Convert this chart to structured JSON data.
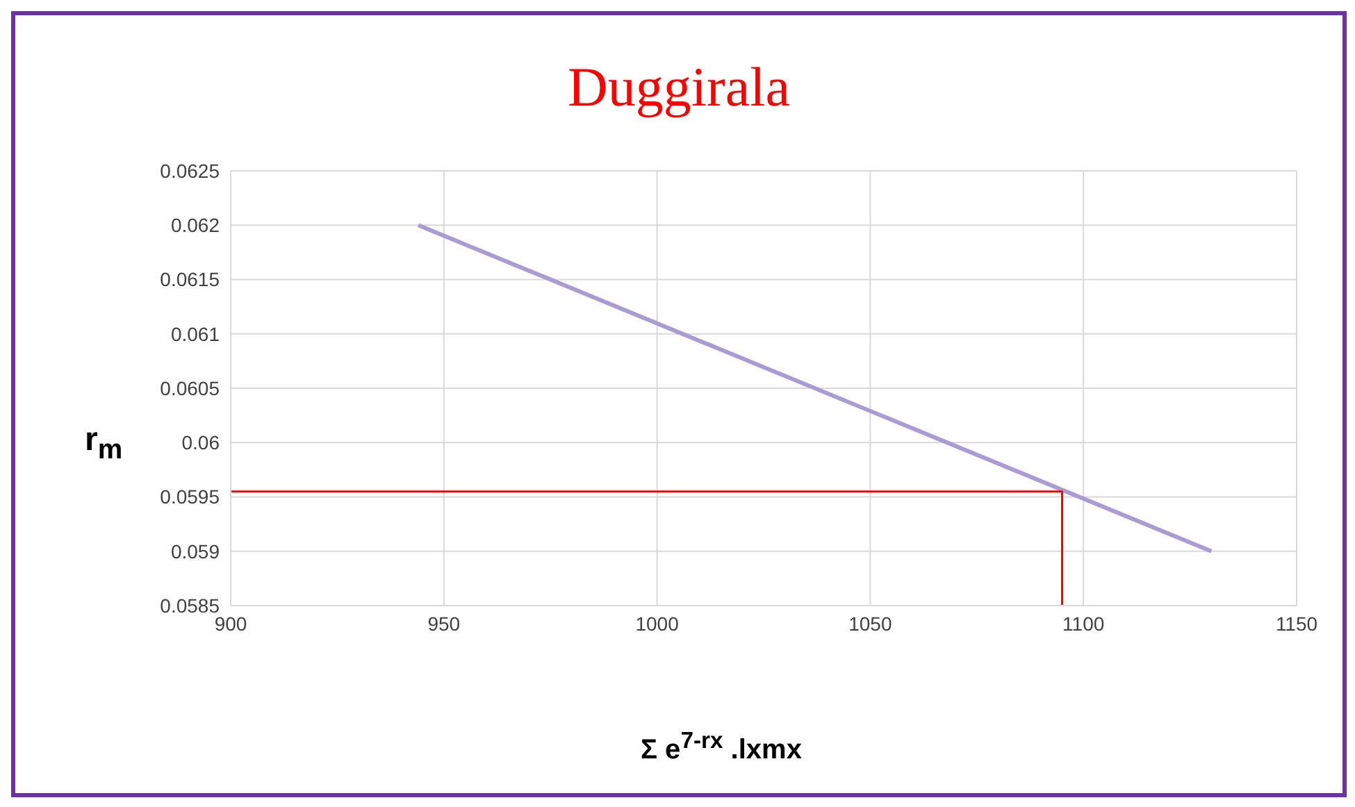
{
  "chart_data": {
    "type": "line",
    "title": "Duggirala",
    "xlabel": "Σ e$^{7-rx}$ .lxmx",
    "ylabel": "r$_{m}$",
    "xlim": [
      900,
      1150
    ],
    "xticks": [
      900,
      950,
      1000,
      1050,
      1100,
      1150
    ],
    "ylim": [
      0.0585,
      0.0625
    ],
    "yticks": [
      0.0585,
      0.059,
      0.0595,
      0.06,
      0.0605,
      0.061,
      0.0615,
      0.062,
      0.0625
    ],
    "grid": true,
    "legend": false,
    "marker": "none",
    "series": [
      {
        "color": "#a99bd6",
        "x": [
          944,
          1130
        ],
        "values": [
          0.062,
          0.059
        ]
      },
      {
        "color": "#ff0000",
        "x": [
          900,
          1095,
          1095
        ],
        "values": [
          0.05955,
          0.05955,
          0.0585
        ]
      }
    ]
  }
}
